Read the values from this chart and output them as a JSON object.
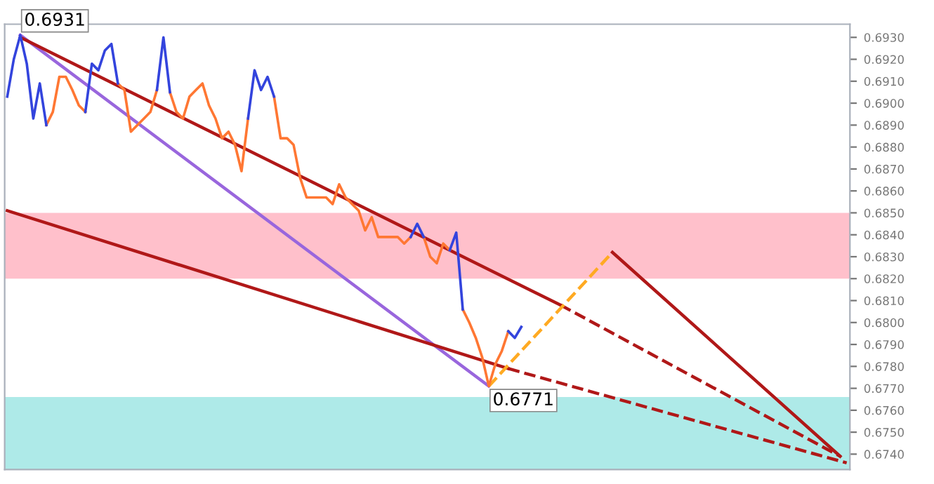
{
  "chart_data": {
    "type": "line",
    "ylim": [
      0.6733,
      0.6936
    ],
    "tick_labels": "y",
    "grid": false,
    "legend": false,
    "categories": [
      null,
      null,
      null,
      null,
      null,
      null,
      null,
      null,
      null,
      null,
      null,
      null,
      null,
      null,
      null,
      null,
      null,
      null,
      null,
      null,
      null,
      null,
      null,
      null,
      null,
      null,
      null,
      null,
      null,
      null,
      null,
      null,
      null,
      null,
      null,
      null,
      null,
      null,
      null,
      null,
      null,
      null,
      null,
      null,
      null,
      null,
      null,
      null,
      null,
      null,
      null,
      null,
      null,
      null,
      null,
      null,
      null,
      null,
      null,
      null,
      null,
      null,
      null,
      null,
      null,
      null,
      null,
      null,
      null,
      null,
      null,
      null,
      null,
      null,
      null,
      null,
      null,
      null,
      null,
      null,
      null,
      null,
      null,
      null,
      null,
      null,
      null,
      null,
      null,
      null,
      null,
      null,
      null,
      null,
      null,
      null,
      null,
      null,
      null,
      null,
      null,
      null,
      null,
      null,
      null,
      null,
      null,
      null,
      null,
      null,
      null,
      null,
      null,
      null,
      null,
      null,
      null,
      null,
      null,
      null,
      null,
      null,
      null,
      null,
      null,
      null,
      null,
      null,
      null,
      null
    ],
    "yticks": [
      {
        "value": 0.693,
        "label": "0.6930"
      },
      {
        "value": 0.692,
        "label": "0.6920"
      },
      {
        "value": 0.691,
        "label": "0.6910"
      },
      {
        "value": 0.69,
        "label": "0.6900"
      },
      {
        "value": 0.689,
        "label": "0.6890"
      },
      {
        "value": 0.688,
        "label": "0.6880"
      },
      {
        "value": 0.687,
        "label": "0.6870"
      },
      {
        "value": 0.686,
        "label": "0.6860"
      },
      {
        "value": 0.685,
        "label": "0.6850"
      },
      {
        "value": 0.684,
        "label": "0.6840"
      },
      {
        "value": 0.683,
        "label": "0.6830"
      },
      {
        "value": 0.682,
        "label": "0.6820"
      },
      {
        "value": 0.681,
        "label": "0.6810"
      },
      {
        "value": 0.68,
        "label": "0.6800"
      },
      {
        "value": 0.679,
        "label": "0.6790"
      },
      {
        "value": 0.678,
        "label": "0.6780"
      },
      {
        "value": 0.677,
        "label": "0.6770"
      },
      {
        "value": 0.676,
        "label": "0.6760"
      },
      {
        "value": 0.675,
        "label": "0.6750"
      },
      {
        "value": 0.674,
        "label": "0.6740"
      }
    ],
    "bands": [
      {
        "axis": "y",
        "from": 0.682,
        "to": 0.685,
        "color": "#ffc0cb"
      },
      {
        "axis": "y",
        "from": 0.6733,
        "to": 0.6766,
        "color": "#aeeae8"
      }
    ],
    "annotations": [
      "0.6931",
      "0.6771"
    ],
    "series": [
      {
        "color": "#ff7733",
        "values": [
          null,
          null,
          null,
          null,
          null,
          null,
          0.689,
          0.6896,
          0.6912,
          0.6912,
          0.6906,
          0.6899,
          0.6896,
          null,
          null,
          null,
          null,
          0.6909,
          0.6906,
          0.6887,
          0.689,
          0.6893,
          0.6896,
          0.6906,
          null,
          0.6905,
          0.6896,
          0.6893,
          0.6903,
          0.6906,
          0.6909,
          0.6899,
          0.6893,
          0.6884,
          0.6887,
          0.6881,
          0.6869,
          0.6893,
          null,
          null,
          null,
          0.6903,
          0.6884,
          0.6884,
          0.6881,
          0.6866,
          0.6857,
          0.6857,
          0.6857,
          0.6857,
          0.6854,
          0.6863,
          0.6857,
          0.6854,
          0.6851,
          0.6842,
          0.6848,
          0.6839,
          0.6839,
          0.6839,
          0.6839,
          0.6836,
          0.6839,
          null,
          0.6839,
          0.683,
          0.6827,
          0.6836,
          0.6833,
          null,
          0.6806,
          0.68,
          0.6793,
          0.6784,
          0.6771,
          0.6781,
          0.6787,
          0.6796,
          null,
          null,
          null,
          null,
          null,
          null,
          null,
          null,
          null,
          null,
          null,
          null,
          null,
          null,
          null,
          null,
          null,
          null,
          null,
          null,
          null,
          null,
          null,
          null,
          null,
          null,
          null,
          null,
          null,
          null,
          null,
          null,
          null,
          null,
          null,
          null,
          null,
          null,
          null,
          null,
          null,
          null,
          null,
          null,
          null,
          null,
          null,
          null,
          null,
          null,
          null,
          null
        ]
      },
      {
        "color": "#3344dd",
        "values": [
          0.6903,
          0.692,
          0.6931,
          0.6918,
          0.6893,
          0.6909,
          0.689,
          null,
          null,
          null,
          null,
          null,
          0.6896,
          0.6918,
          0.6915,
          0.6924,
          0.6927,
          0.6909,
          null,
          null,
          null,
          null,
          null,
          0.6906,
          0.693,
          0.6905,
          null,
          null,
          null,
          null,
          null,
          null,
          null,
          null,
          null,
          null,
          null,
          0.6893,
          0.6915,
          0.6906,
          0.6912,
          0.6903,
          null,
          null,
          null,
          null,
          null,
          null,
          null,
          null,
          null,
          null,
          null,
          null,
          null,
          null,
          null,
          null,
          null,
          null,
          null,
          null,
          0.6839,
          0.6845,
          0.6839,
          null,
          null,
          null,
          0.6833,
          0.6841,
          0.6806,
          null,
          null,
          null,
          null,
          null,
          null,
          0.6796,
          0.6793,
          0.6798,
          null,
          null,
          null,
          null,
          null,
          null,
          null,
          null,
          null,
          null,
          null,
          null,
          null,
          null,
          null,
          null,
          null,
          null,
          null,
          null,
          null,
          null,
          null,
          null,
          null,
          null,
          null,
          null,
          null,
          null,
          null,
          null,
          null,
          null,
          null,
          null,
          null,
          null,
          null,
          null,
          null,
          null,
          null,
          null,
          null,
          null,
          null,
          null,
          null,
          null
        ]
      },
      {
        "color": "#9966dd",
        "values": [
          null,
          null,
          0.6931,
          null,
          null,
          null,
          null,
          null,
          null,
          null,
          null,
          null,
          null,
          null,
          null,
          null,
          null,
          null,
          null,
          null,
          null,
          null,
          null,
          null,
          null,
          null,
          null,
          null,
          null,
          null,
          null,
          null,
          null,
          null,
          null,
          null,
          null,
          null,
          null,
          null,
          null,
          null,
          null,
          null,
          null,
          null,
          null,
          null,
          null,
          null,
          null,
          null,
          null,
          null,
          null,
          null,
          null,
          null,
          null,
          null,
          null,
          null,
          null,
          null,
          null,
          null,
          null,
          null,
          null,
          null,
          null,
          null,
          null,
          null,
          0.6771,
          null,
          null,
          null,
          null,
          null,
          null,
          null,
          null,
          null,
          null,
          null,
          null,
          null,
          null,
          null,
          null,
          null,
          null,
          null,
          null,
          null,
          null,
          null,
          null,
          null,
          null,
          null,
          null,
          null,
          null,
          null,
          null,
          null,
          null,
          null,
          null,
          null,
          null,
          null,
          null,
          null,
          null,
          null,
          null,
          null,
          null,
          null,
          null,
          null,
          null,
          null,
          null,
          null,
          null,
          null
        ]
      },
      {
        "color": "#b01818",
        "values": [
          null,
          null,
          0.693,
          null,
          null,
          null,
          null,
          null,
          null,
          null,
          null,
          null,
          null,
          null,
          null,
          null,
          null,
          null,
          null,
          null,
          null,
          null,
          null,
          null,
          null,
          null,
          null,
          null,
          null,
          null,
          null,
          null,
          null,
          null,
          null,
          null,
          null,
          null,
          null,
          null,
          null,
          null,
          null,
          null,
          null,
          null,
          null,
          null,
          null,
          null,
          null,
          null,
          null,
          null,
          null,
          null,
          null,
          null,
          null,
          null,
          null,
          null,
          null,
          null,
          null,
          null,
          null,
          null,
          null,
          null,
          null,
          null,
          null,
          null,
          null,
          null,
          null,
          null,
          null,
          null,
          null,
          null,
          null,
          null,
          null,
          0.6808,
          null,
          null,
          null,
          null,
          null,
          null,
          null,
          null,
          null,
          null,
          null,
          null,
          null,
          null,
          null,
          null,
          null,
          null,
          null,
          null,
          null,
          null,
          null,
          null,
          null,
          null,
          null,
          null,
          null,
          null,
          null,
          null,
          null,
          null,
          null,
          null,
          null,
          null,
          null,
          null,
          null,
          null,
          null,
          null
        ]
      },
      {
        "color": "#b01818",
        "line_style": "dashed",
        "values": [
          null,
          null,
          null,
          null,
          null,
          null,
          null,
          null,
          null,
          null,
          null,
          null,
          null,
          null,
          null,
          null,
          null,
          null,
          null,
          null,
          null,
          null,
          null,
          null,
          null,
          null,
          null,
          null,
          null,
          null,
          null,
          null,
          null,
          null,
          null,
          null,
          null,
          null,
          null,
          null,
          null,
          null,
          null,
          null,
          null,
          null,
          null,
          null,
          null,
          null,
          null,
          null,
          null,
          null,
          null,
          null,
          null,
          null,
          null,
          null,
          null,
          null,
          null,
          null,
          null,
          null,
          null,
          null,
          null,
          null,
          null,
          null,
          null,
          null,
          null,
          null,
          null,
          null,
          null,
          null,
          null,
          null,
          null,
          null,
          null,
          0.6808,
          null,
          null,
          null,
          null,
          null,
          null,
          null,
          null,
          null,
          null,
          null,
          null,
          null,
          null,
          null,
          null,
          null,
          null,
          null,
          null,
          null,
          null,
          null,
          null,
          null,
          null,
          null,
          null,
          null,
          null,
          null,
          null,
          null,
          null,
          null,
          null,
          null,
          null,
          null,
          null,
          null,
          null,
          0.6739,
          null
        ]
      },
      {
        "color": "#b01818",
        "values": [
          0.6851,
          null,
          null,
          null,
          null,
          null,
          null,
          null,
          null,
          null,
          null,
          null,
          null,
          null,
          null,
          null,
          null,
          null,
          null,
          null,
          null,
          null,
          null,
          null,
          null,
          null,
          null,
          null,
          null,
          null,
          null,
          null,
          null,
          null,
          null,
          null,
          null,
          null,
          null,
          null,
          null,
          null,
          null,
          null,
          null,
          null,
          null,
          null,
          null,
          null,
          null,
          null,
          null,
          null,
          null,
          null,
          null,
          null,
          null,
          null,
          null,
          null,
          null,
          null,
          null,
          null,
          null,
          null,
          null,
          null,
          null,
          null,
          null,
          null,
          null,
          null,
          null,
          0.6779,
          null,
          null,
          null,
          null,
          null,
          null,
          null,
          null,
          null,
          null,
          null,
          null,
          null,
          null,
          null,
          null,
          null,
          null,
          null,
          null,
          null,
          null,
          null,
          null,
          null,
          null,
          null,
          null,
          null,
          null,
          null,
          null,
          null,
          null,
          null,
          null,
          null,
          null,
          null,
          null,
          null,
          null,
          null,
          null,
          null,
          null,
          null,
          null,
          null,
          null,
          null,
          null
        ]
      },
      {
        "color": "#b01818",
        "line_style": "dashed",
        "values": [
          null,
          null,
          null,
          null,
          null,
          null,
          null,
          null,
          null,
          null,
          null,
          null,
          null,
          null,
          null,
          null,
          null,
          null,
          null,
          null,
          null,
          null,
          null,
          null,
          null,
          null,
          null,
          null,
          null,
          null,
          null,
          null,
          null,
          null,
          null,
          null,
          null,
          null,
          null,
          null,
          null,
          null,
          null,
          null,
          null,
          null,
          null,
          null,
          null,
          null,
          null,
          null,
          null,
          null,
          null,
          null,
          null,
          null,
          null,
          null,
          null,
          null,
          null,
          null,
          null,
          null,
          null,
          null,
          null,
          null,
          null,
          null,
          null,
          null,
          null,
          null,
          null,
          0.6779,
          null,
          null,
          null,
          null,
          null,
          null,
          null,
          null,
          null,
          null,
          null,
          null,
          null,
          null,
          null,
          null,
          null,
          null,
          null,
          null,
          null,
          null,
          null,
          null,
          null,
          null,
          null,
          null,
          null,
          null,
          null,
          null,
          null,
          null,
          null,
          null,
          null,
          null,
          null,
          null,
          null,
          null,
          null,
          null,
          null,
          null,
          null,
          null,
          null,
          null,
          null,
          0.6736
        ]
      },
      {
        "color": "#ffaa22",
        "line_style": "dashed",
        "values": [
          null,
          null,
          null,
          null,
          null,
          null,
          null,
          null,
          null,
          null,
          null,
          null,
          null,
          null,
          null,
          null,
          null,
          null,
          null,
          null,
          null,
          null,
          null,
          null,
          null,
          null,
          null,
          null,
          null,
          null,
          null,
          null,
          null,
          null,
          null,
          null,
          null,
          null,
          null,
          null,
          null,
          null,
          null,
          null,
          null,
          null,
          null,
          null,
          null,
          null,
          null,
          null,
          null,
          null,
          null,
          null,
          null,
          null,
          null,
          null,
          null,
          null,
          null,
          null,
          null,
          null,
          null,
          null,
          null,
          null,
          null,
          null,
          null,
          null,
          0.6771,
          null,
          null,
          null,
          null,
          null,
          null,
          null,
          null,
          null,
          null,
          null,
          null,
          null,
          null,
          null,
          null,
          null,
          null,
          0.6832,
          null,
          null,
          null,
          null,
          null,
          null,
          null,
          null,
          null,
          null,
          null,
          null,
          null,
          null,
          null,
          null,
          null,
          null,
          null,
          null,
          null,
          null,
          null,
          null,
          null,
          null,
          null,
          null,
          null,
          null,
          null,
          null,
          null,
          null,
          null,
          null
        ]
      },
      {
        "color": "#b01818",
        "values": [
          null,
          null,
          null,
          null,
          null,
          null,
          null,
          null,
          null,
          null,
          null,
          null,
          null,
          null,
          null,
          null,
          null,
          null,
          null,
          null,
          null,
          null,
          null,
          null,
          null,
          null,
          null,
          null,
          null,
          null,
          null,
          null,
          null,
          null,
          null,
          null,
          null,
          null,
          null,
          null,
          null,
          null,
          null,
          null,
          null,
          null,
          null,
          null,
          null,
          null,
          null,
          null,
          null,
          null,
          null,
          null,
          null,
          null,
          null,
          null,
          null,
          null,
          null,
          null,
          null,
          null,
          null,
          null,
          null,
          null,
          null,
          null,
          null,
          null,
          null,
          null,
          null,
          null,
          null,
          null,
          null,
          null,
          null,
          null,
          null,
          null,
          null,
          null,
          null,
          null,
          null,
          null,
          null,
          0.6832,
          null,
          null,
          null,
          null,
          null,
          null,
          null,
          null,
          null,
          null,
          null,
          null,
          null,
          null,
          null,
          null,
          null,
          null,
          null,
          null,
          null,
          null,
          null,
          null,
          null,
          null,
          null,
          null,
          null,
          null,
          null,
          null,
          null,
          null,
          0.6739,
          null
        ]
      }
    ]
  }
}
